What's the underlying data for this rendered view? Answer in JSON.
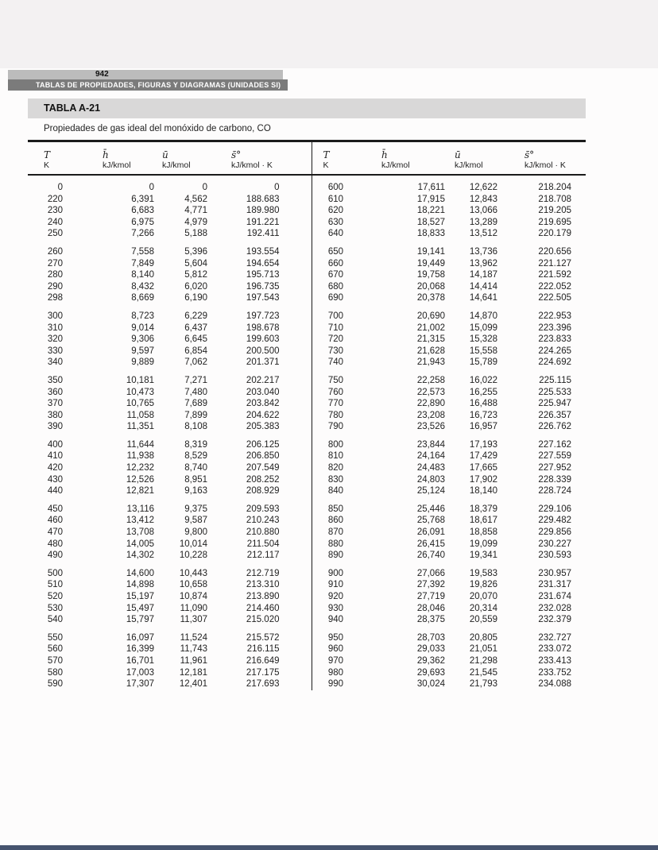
{
  "page": {
    "page_number": "942",
    "running_header": "TABLAS DE PROPIEDADES, FIGURAS Y DIAGRAMAS (UNIDADES SI)",
    "table_label": "TABLA A-21",
    "caption": "Propiedades de gas ideal del monóxido de carbono, CO"
  },
  "colors": {
    "pagenum_bar_bg": "#bcbcbc",
    "running_bar_bg": "#7b7b7b",
    "running_bar_fg": "#ffffff",
    "table_banner_bg": "#d9d8d8",
    "rule_color": "#1b1b1b",
    "bottom_edge": "#46536e"
  },
  "table": {
    "column_headers": [
      {
        "symbol": "T",
        "unit": "K"
      },
      {
        "symbol": "h̄",
        "unit": "kJ/kmol"
      },
      {
        "symbol": "ū",
        "unit": "kJ/kmol"
      },
      {
        "symbol": "s̄°",
        "unit": "kJ/kmol · K"
      }
    ],
    "group_size": 5,
    "left_rows": [
      [
        "0",
        "0",
        "0",
        "0"
      ],
      [
        "220",
        "6,391",
        "4,562",
        "188.683"
      ],
      [
        "230",
        "6,683",
        "4,771",
        "189.980"
      ],
      [
        "240",
        "6,975",
        "4,979",
        "191.221"
      ],
      [
        "250",
        "7,266",
        "5,188",
        "192.411"
      ],
      [
        "260",
        "7,558",
        "5,396",
        "193.554"
      ],
      [
        "270",
        "7,849",
        "5,604",
        "194.654"
      ],
      [
        "280",
        "8,140",
        "5,812",
        "195.713"
      ],
      [
        "290",
        "8,432",
        "6,020",
        "196.735"
      ],
      [
        "298",
        "8,669",
        "6,190",
        "197.543"
      ],
      [
        "300",
        "8,723",
        "6,229",
        "197.723"
      ],
      [
        "310",
        "9,014",
        "6,437",
        "198.678"
      ],
      [
        "320",
        "9,306",
        "6,645",
        "199.603"
      ],
      [
        "330",
        "9,597",
        "6,854",
        "200.500"
      ],
      [
        "340",
        "9,889",
        "7,062",
        "201.371"
      ],
      [
        "350",
        "10,181",
        "7,271",
        "202.217"
      ],
      [
        "360",
        "10,473",
        "7,480",
        "203.040"
      ],
      [
        "370",
        "10,765",
        "7,689",
        "203.842"
      ],
      [
        "380",
        "11,058",
        "7,899",
        "204.622"
      ],
      [
        "390",
        "11,351",
        "8,108",
        "205.383"
      ],
      [
        "400",
        "11,644",
        "8,319",
        "206.125"
      ],
      [
        "410",
        "11,938",
        "8,529",
        "206.850"
      ],
      [
        "420",
        "12,232",
        "8,740",
        "207.549"
      ],
      [
        "430",
        "12,526",
        "8,951",
        "208.252"
      ],
      [
        "440",
        "12,821",
        "9,163",
        "208.929"
      ],
      [
        "450",
        "13,116",
        "9,375",
        "209.593"
      ],
      [
        "460",
        "13,412",
        "9,587",
        "210.243"
      ],
      [
        "470",
        "13,708",
        "9,800",
        "210.880"
      ],
      [
        "480",
        "14,005",
        "10,014",
        "211.504"
      ],
      [
        "490",
        "14,302",
        "10,228",
        "212.117"
      ],
      [
        "500",
        "14,600",
        "10,443",
        "212.719"
      ],
      [
        "510",
        "14,898",
        "10,658",
        "213.310"
      ],
      [
        "520",
        "15,197",
        "10,874",
        "213.890"
      ],
      [
        "530",
        "15,497",
        "11,090",
        "214.460"
      ],
      [
        "540",
        "15,797",
        "11,307",
        "215.020"
      ],
      [
        "550",
        "16,097",
        "11,524",
        "215.572"
      ],
      [
        "560",
        "16,399",
        "11,743",
        "216.115"
      ],
      [
        "570",
        "16,701",
        "11,961",
        "216.649"
      ],
      [
        "580",
        "17,003",
        "12,181",
        "217.175"
      ],
      [
        "590",
        "17,307",
        "12,401",
        "217.693"
      ]
    ],
    "right_rows": [
      [
        "600",
        "17,611",
        "12,622",
        "218.204"
      ],
      [
        "610",
        "17,915",
        "12,843",
        "218.708"
      ],
      [
        "620",
        "18,221",
        "13,066",
        "219.205"
      ],
      [
        "630",
        "18,527",
        "13,289",
        "219.695"
      ],
      [
        "640",
        "18,833",
        "13,512",
        "220.179"
      ],
      [
        "650",
        "19,141",
        "13,736",
        "220.656"
      ],
      [
        "660",
        "19,449",
        "13,962",
        "221.127"
      ],
      [
        "670",
        "19,758",
        "14,187",
        "221.592"
      ],
      [
        "680",
        "20,068",
        "14,414",
        "222.052"
      ],
      [
        "690",
        "20,378",
        "14,641",
        "222.505"
      ],
      [
        "700",
        "20,690",
        "14,870",
        "222.953"
      ],
      [
        "710",
        "21,002",
        "15,099",
        "223.396"
      ],
      [
        "720",
        "21,315",
        "15,328",
        "223.833"
      ],
      [
        "730",
        "21,628",
        "15,558",
        "224.265"
      ],
      [
        "740",
        "21,943",
        "15,789",
        "224.692"
      ],
      [
        "750",
        "22,258",
        "16,022",
        "225.115"
      ],
      [
        "760",
        "22,573",
        "16,255",
        "225.533"
      ],
      [
        "770",
        "22,890",
        "16,488",
        "225.947"
      ],
      [
        "780",
        "23,208",
        "16,723",
        "226.357"
      ],
      [
        "790",
        "23,526",
        "16,957",
        "226.762"
      ],
      [
        "800",
        "23,844",
        "17,193",
        "227.162"
      ],
      [
        "810",
        "24,164",
        "17,429",
        "227.559"
      ],
      [
        "820",
        "24,483",
        "17,665",
        "227.952"
      ],
      [
        "830",
        "24,803",
        "17,902",
        "228.339"
      ],
      [
        "840",
        "25,124",
        "18,140",
        "228.724"
      ],
      [
        "850",
        "25,446",
        "18,379",
        "229.106"
      ],
      [
        "860",
        "25,768",
        "18,617",
        "229.482"
      ],
      [
        "870",
        "26,091",
        "18,858",
        "229.856"
      ],
      [
        "880",
        "26,415",
        "19,099",
        "230.227"
      ],
      [
        "890",
        "26,740",
        "19,341",
        "230.593"
      ],
      [
        "900",
        "27,066",
        "19,583",
        "230.957"
      ],
      [
        "910",
        "27,392",
        "19,826",
        "231.317"
      ],
      [
        "920",
        "27,719",
        "20,070",
        "231.674"
      ],
      [
        "930",
        "28,046",
        "20,314",
        "232.028"
      ],
      [
        "940",
        "28,375",
        "20,559",
        "232.379"
      ],
      [
        "950",
        "28,703",
        "20,805",
        "232.727"
      ],
      [
        "960",
        "29,033",
        "21,051",
        "233.072"
      ],
      [
        "970",
        "29,362",
        "21,298",
        "233.413"
      ],
      [
        "980",
        "29,693",
        "21,545",
        "233.752"
      ],
      [
        "990",
        "30,024",
        "21,793",
        "234.088"
      ]
    ]
  }
}
